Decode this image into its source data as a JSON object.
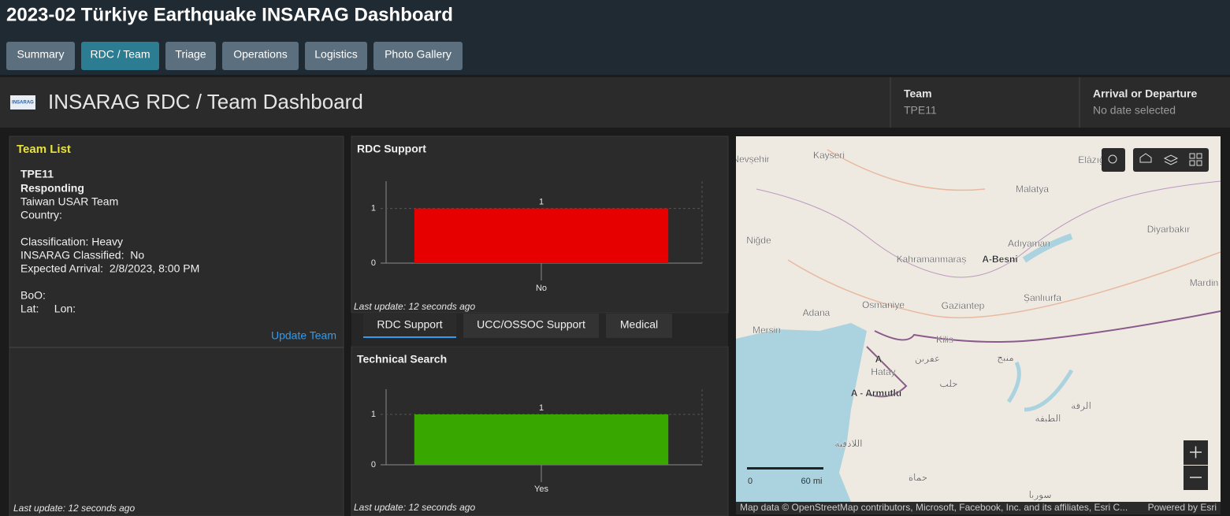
{
  "header": {
    "title": "2023-02 Türkiye Earthquake INSARAG Dashboard"
  },
  "tabs": [
    "Summary",
    "RDC / Team",
    "Triage",
    "Operations",
    "Logistics",
    "Photo Gallery"
  ],
  "dashboard": {
    "title": "INSARAG RDC / Team Dashboard",
    "logo": "INSARAG",
    "selectors": [
      {
        "label": "Team",
        "value": "TPE11"
      },
      {
        "label": "Arrival or Departure",
        "value": "No date selected"
      }
    ]
  },
  "team_list": {
    "title": "Team List",
    "lines": [
      "TPE11",
      "Responding",
      "Taiwan USAR Team",
      "Country:",
      "Classification: Heavy",
      "INSARAG Classified:  No",
      "Expected Arrival:  2/8/2023, 8:00 PM",
      "BoO:",
      "Lat:     Lon:"
    ],
    "link": "Update Team",
    "footer": "Last update: 12 seconds ago"
  },
  "chart_tabs": [
    "RDC Support",
    "UCC/OSSOC Support",
    "Medical"
  ],
  "chart_data": [
    {
      "type": "bar",
      "title": "RDC Support",
      "categories": [
        "No"
      ],
      "values": [
        1
      ],
      "color": "#e60000",
      "ylim": [
        0,
        1.5
      ],
      "yticks": [
        0,
        1
      ],
      "grid": true,
      "data_labels": true,
      "footer": "Last update: 12 seconds ago"
    },
    {
      "type": "bar",
      "title": "Technical Search",
      "categories": [
        "Yes"
      ],
      "values": [
        1
      ],
      "color": "#38a800",
      "ylim": [
        0,
        1.5
      ],
      "yticks": [
        0,
        1
      ],
      "grid": true,
      "data_labels": true,
      "footer": "Last update: 12 seconds ago"
    }
  ],
  "map": {
    "labels": [
      "Nevşehir",
      "Kayseri",
      "Elâzığ",
      "Malatya",
      "Niğde",
      "Diyarbakır",
      "Adıyaman",
      "Kahramanmaraş",
      "A-Besni",
      "Mardin",
      "Osmaniye",
      "Gaziantep",
      "Şanlıurfa",
      "Adana",
      "Mersin",
      "Kilis",
      "A",
      "Hatay",
      "A - Armutlu",
      "عفرين",
      "منبج",
      "حلب",
      "الرقة",
      "الطبقة",
      "اللاذقية",
      "حماة",
      "سوريا"
    ],
    "scale": [
      "0",
      "60 mi"
    ],
    "attribution": "Map data © OpenStreetMap contributors, Microsoft, Facebook, Inc. and its affiliates, Esri C...",
    "powered": "Powered by Esri"
  }
}
